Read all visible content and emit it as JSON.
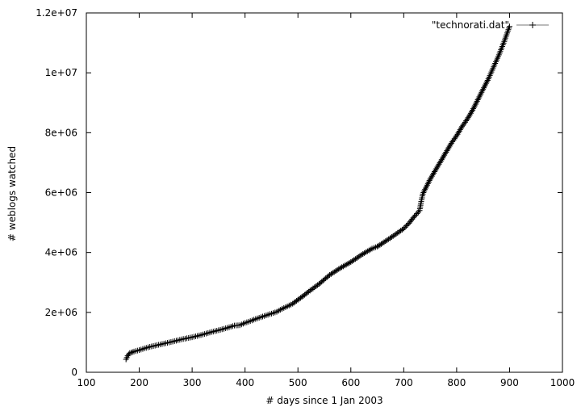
{
  "chart_data": {
    "type": "line",
    "title": "",
    "xlabel": "# days since 1 Jan 2003",
    "ylabel": "# weblogs watched",
    "xlim": [
      100,
      1000
    ],
    "ylim": [
      0,
      12000000
    ],
    "x_ticks": [
      100,
      200,
      300,
      400,
      500,
      600,
      700,
      800,
      900,
      1000
    ],
    "x_tick_labels": [
      "100",
      "200",
      "300",
      "400",
      "500",
      "600",
      "700",
      "800",
      "900",
      "1000"
    ],
    "y_ticks": [
      0,
      2000000,
      4000000,
      6000000,
      8000000,
      10000000,
      12000000
    ],
    "y_tick_labels": [
      "0",
      "2e+06",
      "4e+06",
      "6e+06",
      "8e+06",
      "1e+07",
      "1.2e+07"
    ],
    "grid": false,
    "legend": "top-right",
    "series": [
      {
        "name": "\"technorati.dat\"",
        "marker": "plus",
        "color": "#000000",
        "x": [
          175,
          178,
          182,
          190,
          200,
          210,
          220,
          240,
          260,
          280,
          300,
          320,
          340,
          360,
          380,
          390,
          400,
          410,
          420,
          430,
          460,
          470,
          480,
          490,
          500,
          510,
          520,
          540,
          560,
          580,
          600,
          620,
          640,
          650,
          660,
          680,
          700,
          710,
          720,
          730,
          733,
          736,
          740,
          750,
          760,
          770,
          780,
          790,
          800,
          810,
          820,
          830,
          840,
          850,
          860,
          870,
          880,
          890,
          900
        ],
        "y": [
          430000,
          550000,
          640000,
          690000,
          740000,
          800000,
          850000,
          930000,
          1010000,
          1100000,
          1170000,
          1260000,
          1360000,
          1450000,
          1560000,
          1570000,
          1650000,
          1710000,
          1780000,
          1840000,
          2020000,
          2120000,
          2200000,
          2290000,
          2420000,
          2550000,
          2690000,
          2950000,
          3250000,
          3480000,
          3680000,
          3920000,
          4130000,
          4200000,
          4310000,
          4550000,
          4800000,
          4980000,
          5200000,
          5400000,
          5700000,
          5950000,
          6100000,
          6450000,
          6750000,
          7050000,
          7350000,
          7650000,
          7900000,
          8200000,
          8450000,
          8750000,
          9100000,
          9450000,
          9800000,
          10200000,
          10600000,
          11050000,
          11550000
        ]
      }
    ]
  }
}
